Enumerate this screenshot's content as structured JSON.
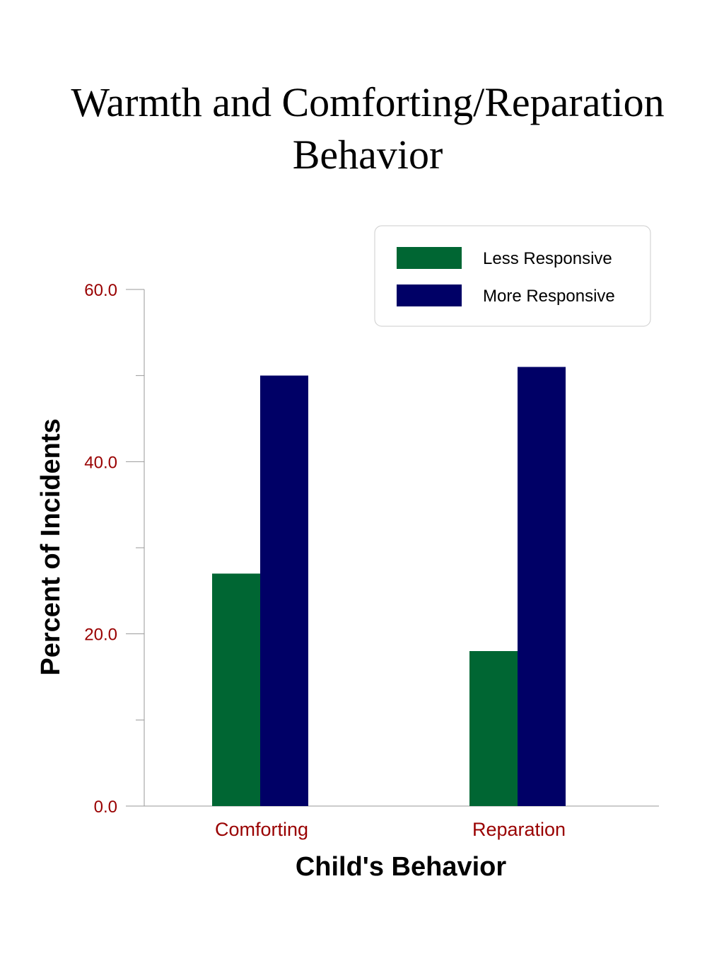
{
  "chart_data": {
    "type": "bar",
    "title_lines": [
      "Warmth and Comforting/Reparation",
      "Behavior"
    ],
    "xlabel": "Child's Behavior",
    "ylabel": "Percent of Incidents",
    "categories": [
      "Comforting",
      "Reparation"
    ],
    "series": [
      {
        "name": "Less Responsive",
        "values": [
          27.0,
          18.0
        ],
        "color": "#006633"
      },
      {
        "name": "More Responsive",
        "values": [
          50.0,
          51.0
        ],
        "color": "#000066"
      }
    ],
    "ylim": [
      0,
      60
    ],
    "yticks": [
      0,
      20,
      40,
      60
    ],
    "ytick_labels": [
      "0.0",
      "20.0",
      "40.0",
      "60.0"
    ],
    "minor_yticks": [
      10,
      30,
      50
    ],
    "grid": false,
    "legend_position": "top-right",
    "colors": {
      "tick_label": "#990000",
      "axis": "#999999"
    }
  }
}
